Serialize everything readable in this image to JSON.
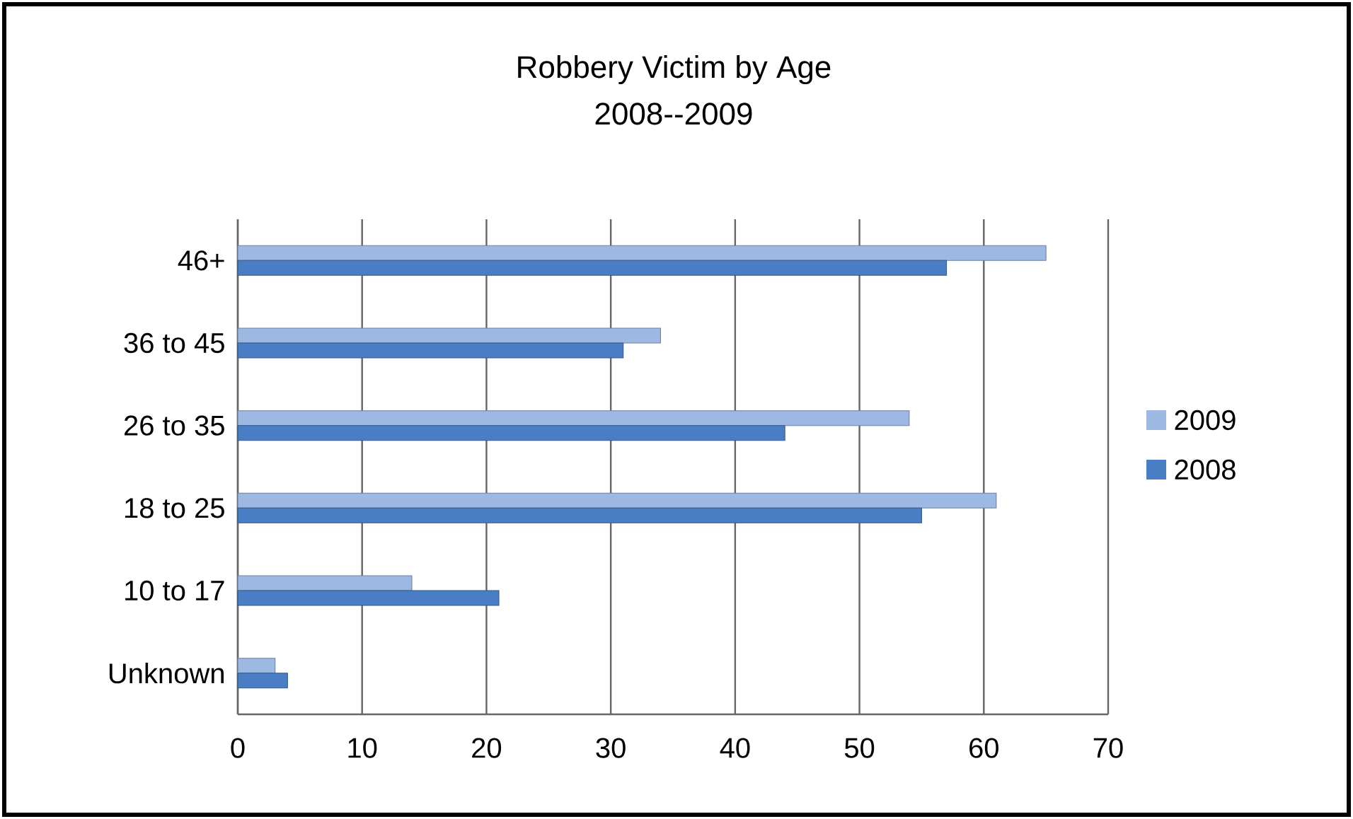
{
  "chart_data": {
    "type": "bar",
    "orientation": "horizontal",
    "title": "Robbery Victim by Age",
    "subtitle": "2008--2009",
    "categories": [
      "46+",
      "36 to 45",
      "26 to 35",
      "18 to 25",
      "10 to 17",
      "Unknown"
    ],
    "series": [
      {
        "name": "2009",
        "color": "#9db8e2",
        "values": [
          65,
          34,
          54,
          61,
          14,
          3
        ]
      },
      {
        "name": "2008",
        "color": "#4a7ec4",
        "values": [
          57,
          31,
          44,
          55,
          21,
          4
        ]
      }
    ],
    "xlim": [
      0,
      70
    ],
    "xticks": [
      0,
      10,
      20,
      30,
      40,
      50,
      60,
      70
    ],
    "grid": "x",
    "legend": "right"
  }
}
